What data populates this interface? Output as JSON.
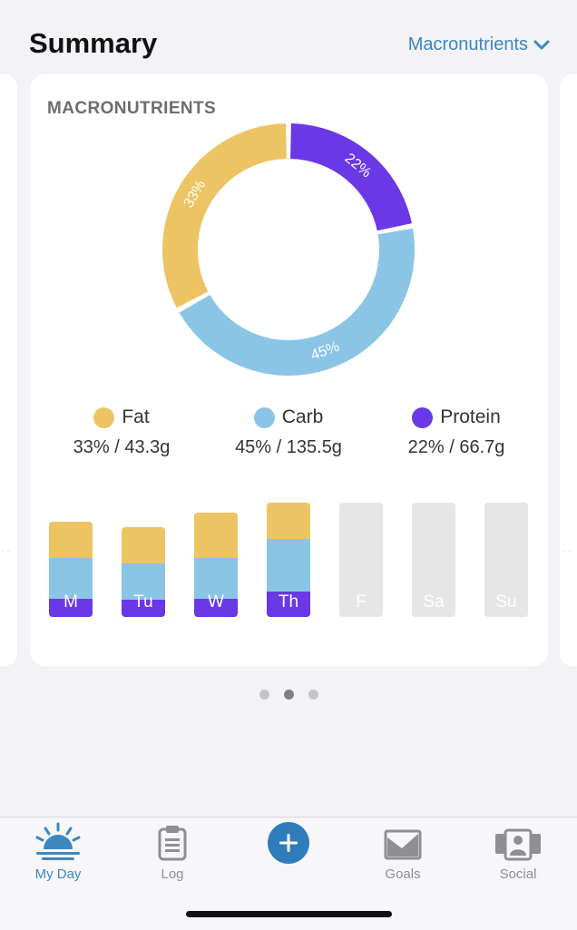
{
  "header": {
    "title": "Summary",
    "selector_label": "Macronutrients"
  },
  "card": {
    "title": "MACRONUTRIENTS"
  },
  "colors": {
    "fat": "#ecc463",
    "carb": "#8ac5e6",
    "protein": "#6a38e6",
    "empty": "#e6e6e6",
    "accent": "#3d87c2"
  },
  "chart_data": {
    "type": "pie",
    "variant": "donut",
    "slices": [
      {
        "name": "Fat",
        "percent": 33,
        "label": "33%",
        "grams": "43.3g"
      },
      {
        "name": "Carb",
        "percent": 45,
        "label": "45%",
        "grams": "135.5g"
      },
      {
        "name": "Protein",
        "percent": 22,
        "label": "22%",
        "grams": "66.7g"
      }
    ]
  },
  "legend": [
    {
      "name": "Fat",
      "value": "33% / 43.3g"
    },
    {
      "name": "Carb",
      "value": "45% / 135.5g"
    },
    {
      "name": "Protein",
      "value": "22% / 66.7g"
    }
  ],
  "week_chart": {
    "type": "stacked-bar",
    "days": [
      {
        "label": "M",
        "fat": 40,
        "carb": 45,
        "protein": 20,
        "logged": true
      },
      {
        "label": "Tu",
        "fat": 40,
        "carb": 40,
        "protein": 19,
        "logged": true
      },
      {
        "label": "W",
        "fat": 50,
        "carb": 45,
        "protein": 20,
        "logged": true
      },
      {
        "label": "Th",
        "fat": 40,
        "carb": 58,
        "protein": 28,
        "logged": true
      },
      {
        "label": "F",
        "logged": false
      },
      {
        "label": "Sa",
        "logged": false
      },
      {
        "label": "Su",
        "logged": false
      }
    ]
  },
  "pager": {
    "count": 3,
    "active": 1
  },
  "tabbar": {
    "tabs": [
      {
        "label": "My Day",
        "icon": "sunrise-icon",
        "active": true
      },
      {
        "label": "Log",
        "icon": "clipboard-icon",
        "active": false
      },
      {
        "label": "",
        "icon": "plus-icon",
        "active": false
      },
      {
        "label": "Goals",
        "icon": "chart-image-icon",
        "active": false
      },
      {
        "label": "Social",
        "icon": "people-icon",
        "active": false
      }
    ]
  }
}
